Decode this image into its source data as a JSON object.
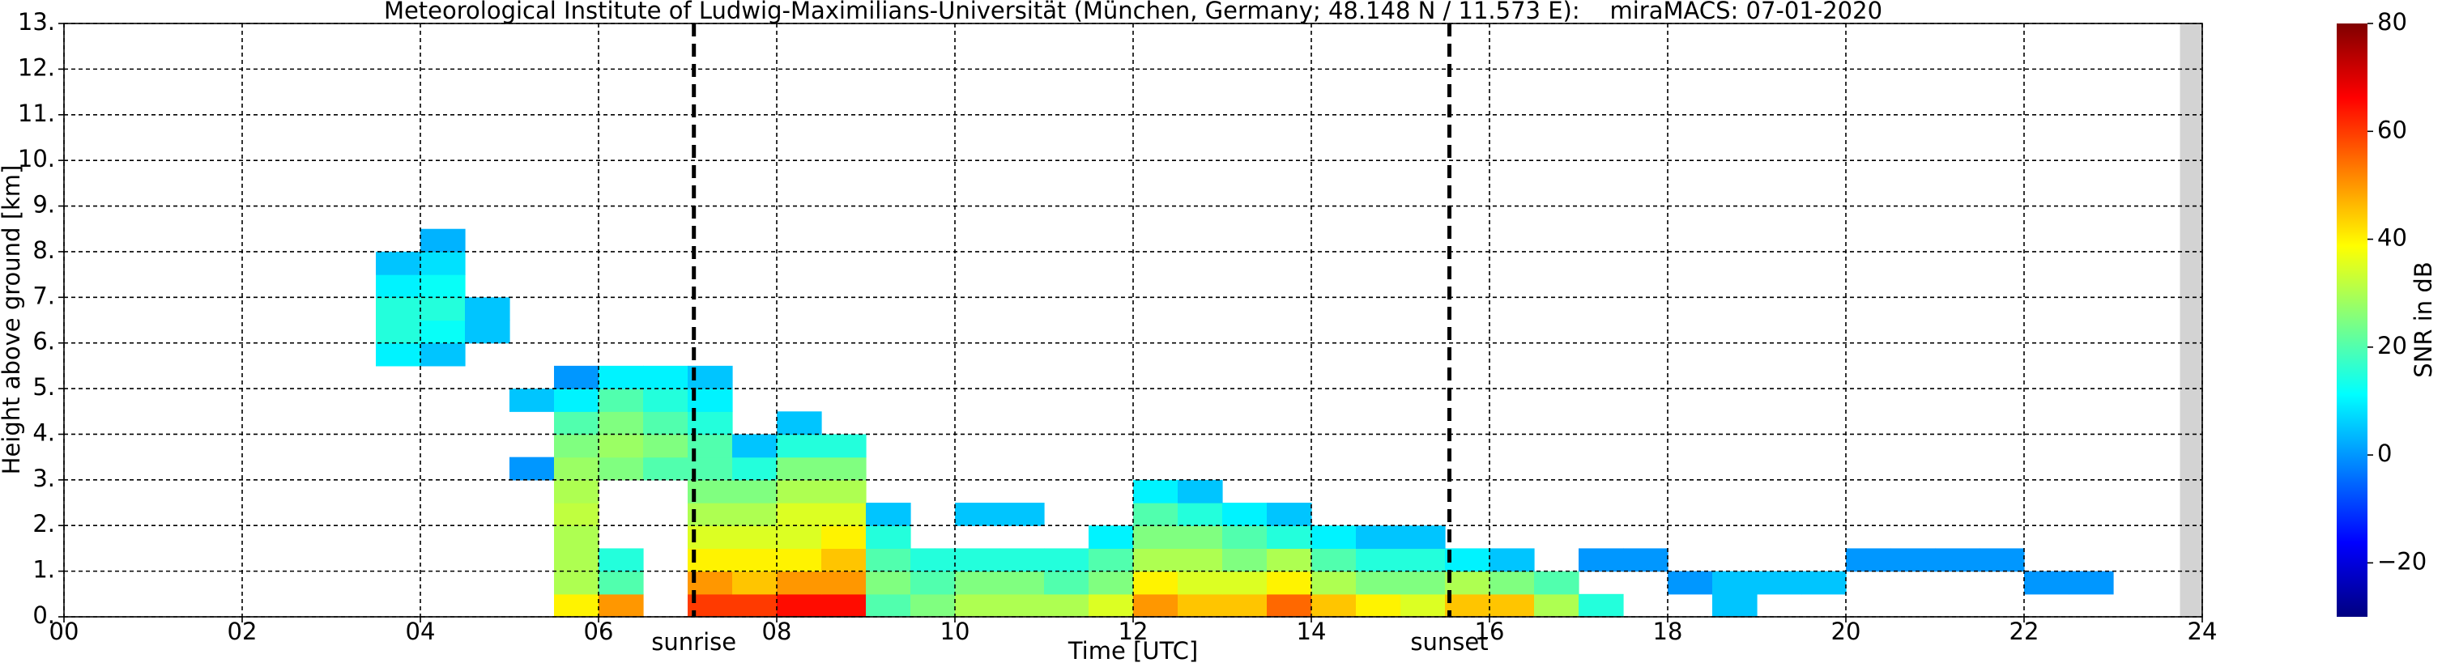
{
  "chart_data": {
    "type": "heatmap",
    "title": "Meteorological Institute of Ludwig-Maximilians-Universität (München, Germany; 48.148 N / 11.573 E):    miraMACS: 07-01-2020",
    "x_label": "Time [UTC]",
    "y_label": "Height above ground [km]",
    "colorbar_label": "SNR in dB",
    "colormap": "jet",
    "clim": [
      -30,
      80
    ],
    "cticks": [
      {
        "value": -20,
        "label": "−20"
      },
      0,
      20,
      40,
      60,
      80
    ],
    "xlim": [
      0,
      24
    ],
    "ylim": [
      0,
      13
    ],
    "xticks": [
      {
        "value": 0,
        "label": "00"
      },
      {
        "value": 2,
        "label": "02"
      },
      {
        "value": 4,
        "label": "04"
      },
      {
        "value": 6,
        "label": "06"
      },
      {
        "value": 8,
        "label": "08"
      },
      {
        "value": 10,
        "label": "10"
      },
      {
        "value": 12,
        "label": "12"
      },
      {
        "value": 14,
        "label": "14"
      },
      {
        "value": 16,
        "label": "16"
      },
      {
        "value": 18,
        "label": "18"
      },
      {
        "value": 20,
        "label": "20"
      },
      {
        "value": 22,
        "label": "22"
      },
      {
        "value": 24,
        "label": "24"
      }
    ],
    "yticks": [
      {
        "value": 0,
        "label": "0."
      },
      {
        "value": 1,
        "label": "1."
      },
      {
        "value": 2,
        "label": "2."
      },
      {
        "value": 3,
        "label": "3."
      },
      {
        "value": 4,
        "label": "4."
      },
      {
        "value": 5,
        "label": "5."
      },
      {
        "value": 6,
        "label": "6."
      },
      {
        "value": 7,
        "label": "7."
      },
      {
        "value": 8,
        "label": "8."
      },
      {
        "value": 9,
        "label": "9."
      },
      {
        "value": 10,
        "label": "10."
      },
      {
        "value": 11,
        "label": "11."
      },
      {
        "value": 12,
        "label": "12."
      },
      {
        "value": 13,
        "label": "13."
      }
    ],
    "grid": true,
    "annotations": [
      {
        "text": "sunrise",
        "x": 7.07
      },
      {
        "text": "sunset",
        "x": 15.55
      }
    ],
    "missing_data": [
      [
        23.75,
        24
      ]
    ],
    "xbins": [
      0,
      0.5,
      1,
      1.5,
      2,
      2.5,
      3,
      3.5,
      4,
      4.5,
      5,
      5.5,
      6,
      6.5,
      7,
      7.5,
      8,
      8.5,
      9,
      9.5,
      10,
      10.5,
      11,
      11.5,
      12,
      12.5,
      13,
      13.5,
      14,
      14.5,
      15,
      15.5,
      16,
      16.5,
      17,
      17.5,
      18,
      18.5,
      19,
      19.5,
      20,
      20.5,
      21,
      21.5,
      22,
      22.5,
      23,
      23.5,
      24
    ],
    "ybins": [
      0,
      0.5,
      1,
      1.5,
      2,
      2.5,
      3,
      3.5,
      4,
      4.5,
      5,
      5.5,
      6,
      6.5,
      7,
      7.5,
      8,
      8.5
    ],
    "z": [
      [
        null,
        null,
        null,
        null,
        null,
        null,
        null,
        null,
        null,
        null,
        null,
        40,
        50,
        null,
        60,
        60,
        65,
        65,
        20,
        25,
        30,
        30,
        30,
        35,
        50,
        45,
        45,
        55,
        45,
        40,
        35,
        45,
        45,
        30,
        15,
        null,
        null,
        5,
        null,
        null,
        null,
        null,
        null,
        null,
        null,
        null,
        null,
        null
      ],
      [
        null,
        null,
        null,
        null,
        null,
        null,
        null,
        null,
        null,
        null,
        null,
        30,
        20,
        null,
        50,
        45,
        50,
        50,
        25,
        20,
        25,
        25,
        20,
        25,
        40,
        35,
        35,
        40,
        30,
        25,
        25,
        30,
        25,
        20,
        null,
        null,
        0,
        5,
        5,
        5,
        null,
        null,
        null,
        null,
        0,
        0,
        null,
        null
      ],
      [
        null,
        null,
        null,
        null,
        null,
        null,
        null,
        null,
        null,
        null,
        null,
        30,
        15,
        null,
        40,
        40,
        40,
        45,
        20,
        15,
        15,
        15,
        15,
        20,
        30,
        30,
        25,
        30,
        20,
        15,
        15,
        10,
        5,
        null,
        0,
        0,
        null,
        null,
        null,
        null,
        0,
        0,
        0,
        0,
        null,
        null,
        null,
        null
      ],
      [
        null,
        null,
        null,
        null,
        null,
        null,
        null,
        null,
        null,
        null,
        null,
        30,
        null,
        null,
        35,
        35,
        35,
        40,
        15,
        null,
        null,
        null,
        null,
        10,
        25,
        25,
        20,
        15,
        10,
        5,
        5,
        null,
        null,
        null,
        null,
        null,
        null,
        null,
        null,
        null,
        null,
        null,
        null,
        null,
        null,
        null,
        null,
        null
      ],
      [
        null,
        null,
        null,
        null,
        null,
        null,
        null,
        null,
        null,
        null,
        null,
        32,
        null,
        null,
        30,
        30,
        35,
        35,
        5,
        null,
        5,
        5,
        null,
        null,
        20,
        15,
        10,
        5,
        null,
        null,
        null,
        null,
        null,
        null,
        null,
        null,
        null,
        null,
        null,
        null,
        null,
        null,
        null,
        null,
        null,
        null,
        null,
        null
      ],
      [
        null,
        null,
        null,
        null,
        null,
        null,
        null,
        null,
        null,
        null,
        null,
        30,
        null,
        null,
        25,
        25,
        30,
        30,
        null,
        null,
        null,
        null,
        null,
        null,
        10,
        5,
        null,
        null,
        null,
        null,
        null,
        null,
        null,
        null,
        null,
        null,
        null,
        null,
        null,
        null,
        null,
        null,
        null,
        null,
        null,
        null,
        null,
        null
      ],
      [
        null,
        null,
        null,
        null,
        null,
        null,
        null,
        null,
        null,
        null,
        0,
        28,
        25,
        20,
        20,
        15,
        25,
        25,
        null,
        null,
        null,
        null,
        null,
        null,
        null,
        null,
        null,
        null,
        null,
        null,
        null,
        null,
        null,
        null,
        null,
        null,
        null,
        null,
        null,
        null,
        null,
        null,
        null,
        null,
        null,
        null,
        null,
        null
      ],
      [
        null,
        null,
        null,
        null,
        null,
        null,
        null,
        null,
        null,
        null,
        null,
        25,
        28,
        25,
        20,
        5,
        15,
        15,
        null,
        null,
        null,
        null,
        null,
        null,
        null,
        null,
        null,
        null,
        null,
        null,
        null,
        null,
        null,
        null,
        null,
        null,
        null,
        null,
        null,
        null,
        null,
        null,
        null,
        null,
        null,
        null,
        null,
        null
      ],
      [
        null,
        null,
        null,
        null,
        null,
        null,
        null,
        null,
        null,
        null,
        null,
        20,
        25,
        20,
        15,
        null,
        5,
        null,
        null,
        null,
        null,
        null,
        null,
        null,
        null,
        null,
        null,
        null,
        null,
        null,
        null,
        null,
        null,
        null,
        null,
        null,
        null,
        null,
        null,
        null,
        null,
        null,
        null,
        null,
        null,
        null,
        null,
        null
      ],
      [
        null,
        null,
        null,
        null,
        null,
        null,
        null,
        null,
        null,
        null,
        5,
        10,
        20,
        15,
        10,
        null,
        null,
        null,
        null,
        null,
        null,
        null,
        null,
        null,
        null,
        null,
        null,
        null,
        null,
        null,
        null,
        null,
        null,
        null,
        null,
        null,
        null,
        null,
        null,
        null,
        null,
        null,
        null,
        null,
        null,
        null,
        null,
        null
      ],
      [
        null,
        null,
        null,
        null,
        null,
        null,
        null,
        null,
        null,
        null,
        null,
        0,
        10,
        10,
        5,
        null,
        null,
        null,
        null,
        null,
        null,
        null,
        null,
        null,
        null,
        null,
        null,
        null,
        null,
        null,
        null,
        null,
        null,
        null,
        null,
        null,
        null,
        null,
        null,
        null,
        null,
        null,
        null,
        null,
        null,
        null,
        null,
        null
      ],
      [
        null,
        null,
        null,
        null,
        null,
        null,
        null,
        10,
        5,
        null,
        null,
        null,
        null,
        null,
        null,
        null,
        null,
        null,
        null,
        null,
        null,
        null,
        null,
        null,
        null,
        null,
        null,
        null,
        null,
        null,
        null,
        null,
        null,
        null,
        null,
        null,
        null,
        null,
        null,
        null,
        null,
        null,
        null,
        null,
        null,
        null,
        null,
        null
      ],
      [
        null,
        null,
        null,
        null,
        null,
        null,
        null,
        15,
        12,
        5,
        null,
        null,
        null,
        null,
        null,
        null,
        null,
        null,
        null,
        null,
        null,
        null,
        null,
        null,
        null,
        null,
        null,
        null,
        null,
        null,
        null,
        null,
        null,
        null,
        null,
        null,
        null,
        null,
        null,
        null,
        null,
        null,
        null,
        null,
        null,
        null,
        null,
        null
      ],
      [
        null,
        null,
        null,
        null,
        null,
        null,
        null,
        15,
        15,
        5,
        null,
        null,
        null,
        null,
        null,
        null,
        null,
        null,
        null,
        null,
        null,
        null,
        null,
        null,
        null,
        null,
        null,
        null,
        null,
        null,
        null,
        null,
        null,
        null,
        null,
        null,
        null,
        null,
        null,
        null,
        null,
        null,
        null,
        null,
        null,
        null,
        null,
        null
      ],
      [
        null,
        null,
        null,
        null,
        null,
        null,
        null,
        10,
        12,
        null,
        null,
        null,
        null,
        null,
        null,
        null,
        null,
        null,
        null,
        null,
        null,
        null,
        null,
        null,
        null,
        null,
        null,
        null,
        null,
        null,
        null,
        null,
        null,
        null,
        null,
        null,
        null,
        null,
        null,
        null,
        null,
        null,
        null,
        null,
        null,
        null,
        null,
        null
      ],
      [
        null,
        null,
        null,
        null,
        null,
        null,
        null,
        5,
        8,
        null,
        null,
        null,
        null,
        null,
        null,
        null,
        null,
        null,
        null,
        null,
        null,
        null,
        null,
        null,
        null,
        null,
        null,
        null,
        null,
        null,
        null,
        null,
        null,
        null,
        null,
        null,
        null,
        null,
        null,
        null,
        null,
        null,
        null,
        null,
        null,
        null,
        null,
        null
      ],
      [
        null,
        null,
        null,
        null,
        null,
        null,
        null,
        null,
        3,
        null,
        null,
        null,
        null,
        null,
        null,
        null,
        null,
        null,
        null,
        null,
        null,
        null,
        null,
        null,
        null,
        null,
        null,
        null,
        null,
        null,
        null,
        null,
        null,
        null,
        null,
        null,
        null,
        null,
        null,
        null,
        null,
        null,
        null,
        null,
        null,
        null,
        null,
        null
      ]
    ]
  }
}
